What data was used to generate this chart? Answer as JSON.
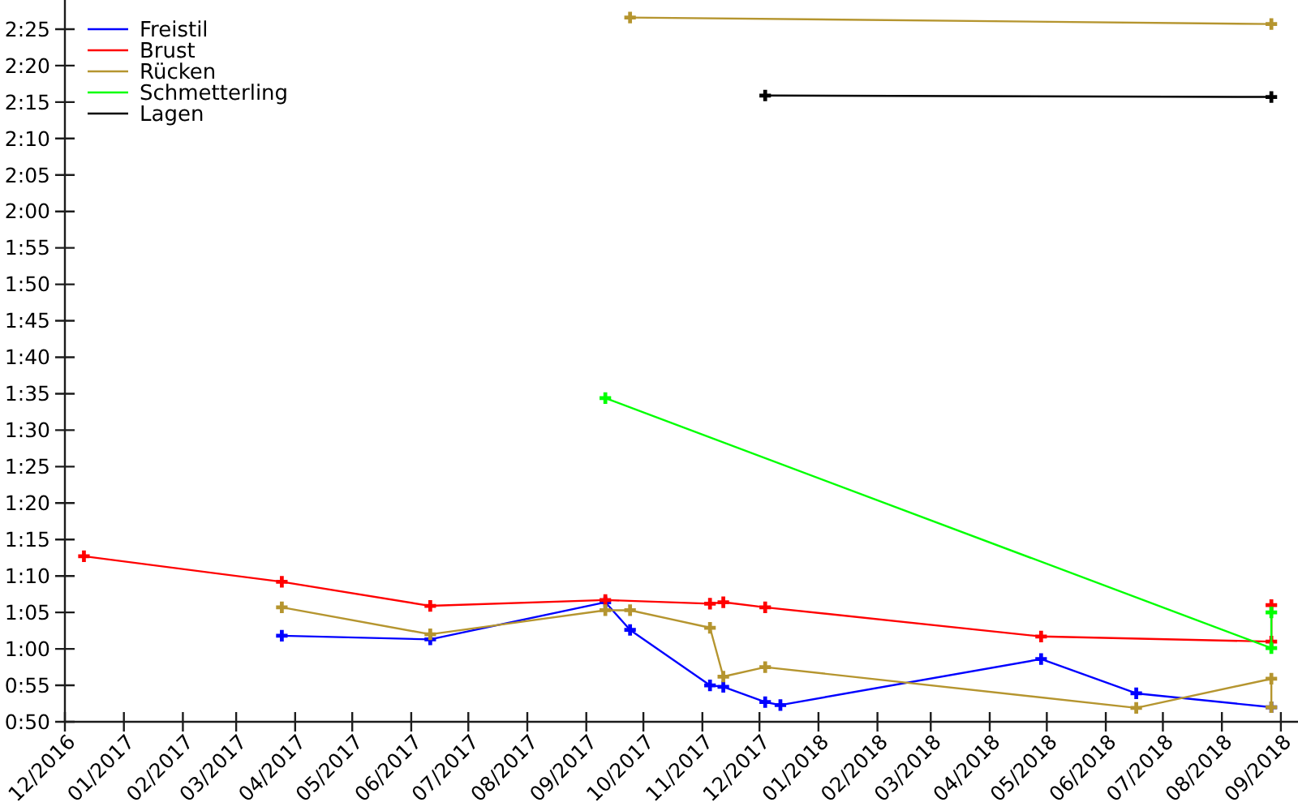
{
  "chart_data": {
    "type": "line",
    "legend": "top left",
    "marker": "cross",
    "line_style": "solid",
    "xlim": [
      "2016-12-01",
      "2018-09-10"
    ],
    "xticks": [
      {
        "value": "2016-12",
        "label": "12/2016"
      },
      {
        "value": "2017-01",
        "label": "01/2017"
      },
      {
        "value": "2017-02",
        "label": "02/2017"
      },
      {
        "value": "2017-03",
        "label": "03/2017"
      },
      {
        "value": "2017-04",
        "label": "04/2017"
      },
      {
        "value": "2017-05",
        "label": "05/2017"
      },
      {
        "value": "2017-06",
        "label": "06/2017"
      },
      {
        "value": "2017-07",
        "label": "07/2017"
      },
      {
        "value": "2017-08",
        "label": "08/2017"
      },
      {
        "value": "2017-09",
        "label": "09/2017"
      },
      {
        "value": "2017-10",
        "label": "10/2017"
      },
      {
        "value": "2017-11",
        "label": "11/2017"
      },
      {
        "value": "2017-12",
        "label": "12/2017"
      },
      {
        "value": "2018-01",
        "label": "01/2018"
      },
      {
        "value": "2018-02",
        "label": "02/2018"
      },
      {
        "value": "2018-03",
        "label": "03/2018"
      },
      {
        "value": "2018-04",
        "label": "04/2018"
      },
      {
        "value": "2018-05",
        "label": "05/2018"
      },
      {
        "value": "2018-06",
        "label": "06/2018"
      },
      {
        "value": "2018-07",
        "label": "07/2018"
      },
      {
        "value": "2018-08",
        "label": "08/2018"
      },
      {
        "value": "2018-09",
        "label": "09/2018"
      }
    ],
    "ylim": [
      50,
      149
    ],
    "yticks": [
      {
        "value": 50,
        "label": "0:50"
      },
      {
        "value": 55,
        "label": "0:55"
      },
      {
        "value": 60,
        "label": "1:00"
      },
      {
        "value": 65,
        "label": "1:05"
      },
      {
        "value": 70,
        "label": "1:10"
      },
      {
        "value": 75,
        "label": "1:15"
      },
      {
        "value": 80,
        "label": "1:20"
      },
      {
        "value": 85,
        "label": "1:25"
      },
      {
        "value": 90,
        "label": "1:30"
      },
      {
        "value": 95,
        "label": "1:35"
      },
      {
        "value": 100,
        "label": "1:40"
      },
      {
        "value": 105,
        "label": "1:45"
      },
      {
        "value": 110,
        "label": "1:50"
      },
      {
        "value": 115,
        "label": "1:55"
      },
      {
        "value": 120,
        "label": "2:00"
      },
      {
        "value": 125,
        "label": "2:05"
      },
      {
        "value": 130,
        "label": "2:10"
      },
      {
        "value": 135,
        "label": "2:15"
      },
      {
        "value": 140,
        "label": "2:20"
      },
      {
        "value": 145,
        "label": "2:25"
      }
    ],
    "series": [
      {
        "name": "Freistil",
        "color": "#0000ff",
        "x": [
          "2017-03-25",
          "2017-06-11",
          "2017-09-11",
          "2017-09-24",
          "2017-11-05",
          "2017-11-12",
          "2017-12-04",
          "2017-12-12",
          "2018-04-28",
          "2018-06-17",
          "2018-08-27"
        ],
        "values": [
          61.8,
          61.3,
          66.4,
          62.6,
          55.0,
          54.8,
          52.7,
          52.3,
          58.6,
          53.9,
          52.0
        ]
      },
      {
        "name": "Brust",
        "color": "#ff0000",
        "x": [
          "2016-12-11",
          "2017-03-25",
          "2017-06-11",
          "2017-09-11",
          "2017-11-05",
          "2017-11-12",
          "2017-12-04",
          "2018-04-28",
          "2018-08-27",
          "2018-08-27"
        ],
        "values": [
          72.7,
          69.2,
          65.9,
          66.7,
          66.2,
          66.4,
          65.7,
          61.7,
          61.0,
          66.0
        ]
      },
      {
        "name": "Rücken",
        "color": "#b5952f",
        "x": [
          "2017-03-25",
          "2017-06-11",
          "2017-09-11",
          "2017-09-24",
          "2017-11-05",
          "2017-11-12",
          "2017-12-04",
          "2018-06-17",
          "2018-08-27",
          "2018-08-27"
        ],
        "values": [
          65.7,
          62.0,
          65.3,
          65.3,
          62.9,
          56.2,
          57.5,
          51.9,
          55.9,
          52.0
        ]
      },
      {
        "name": "Schmetterling",
        "color": "#00ff00",
        "x": [
          "2017-09-11",
          "2018-08-27",
          "2018-08-27"
        ],
        "values": [
          94.4,
          60.1,
          65.0
        ]
      },
      {
        "name": "Lagen",
        "color": "#000000",
        "x": [
          "2017-12-04",
          "2018-08-27"
        ],
        "values": [
          135.9,
          135.7
        ]
      },
      {
        "color": "#b5952f",
        "x": [
          "2017-09-24",
          "2018-08-27"
        ],
        "values": [
          146.6,
          145.7
        ]
      }
    ]
  }
}
